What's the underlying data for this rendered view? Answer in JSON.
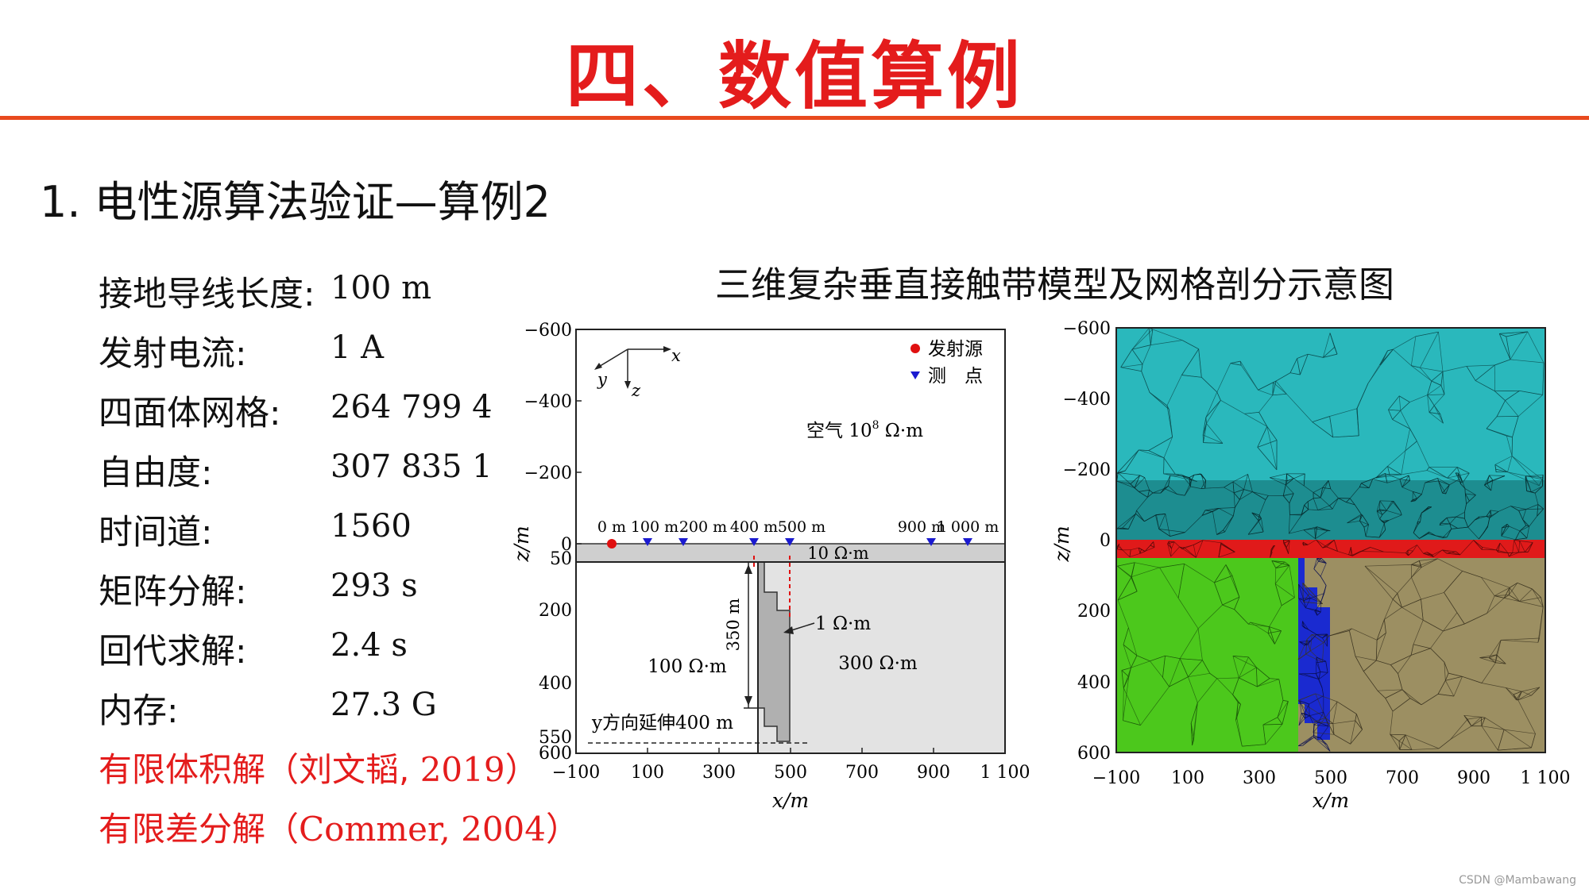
{
  "page": {
    "title": "四、数值算例",
    "subtitle": "1.  电性源算法验证—算例2",
    "figure_title": "三维复杂垂直接触带模型及网格剖分示意图",
    "watermark": "CSDN @Mambawang"
  },
  "params": [
    {
      "label": "接地导线长度:",
      "value": "100 m"
    },
    {
      "label": "发射电流:",
      "value": "1 A"
    },
    {
      "label": "四面体网格:",
      "value": "264 799 4"
    },
    {
      "label": "自由度:",
      "value": "307 835 1"
    },
    {
      "label": "时间道:",
      "value": "1560"
    },
    {
      "label": "矩阵分解:",
      "value": "293 s"
    },
    {
      "label": "回代求解:",
      "value": "2.4 s"
    },
    {
      "label": "内存:",
      "value": "27.3 G"
    }
  ],
  "refs": [
    {
      "prefix": "有限体积解（刘文韬, ",
      "year": "2019",
      "suffix": "）"
    },
    {
      "prefix": "有限差分解（",
      "year": "Commer, 2004",
      "suffix": "）"
    }
  ],
  "left_plot": {
    "y_ticks_upper": [
      "−600",
      "−400",
      "−200",
      "0"
    ],
    "y_ticks_lower": [
      "50",
      "200",
      "400",
      "550",
      "600"
    ],
    "x_ticks": [
      "−100",
      "100",
      "300",
      "500",
      "700",
      "900",
      "1 100"
    ],
    "xlabel": "x/m",
    "ylabel": "z/m",
    "axis_x": "x",
    "axis_y": "y",
    "axis_z": "z",
    "legend_source": "发射源",
    "legend_station": "测　点",
    "air_label": "空气  10",
    "air_exp": "8",
    "air_unit": " Ω·m",
    "station_labels": [
      "0 m",
      "100 m",
      "200 m",
      "400 m",
      "500 m",
      "900 m",
      "1 000 m"
    ],
    "layer_label": "10 Ω·m",
    "left_block_label": "100 Ω·m",
    "right_block_label": "300 Ω·m",
    "dyke_label": "1 Ω·m",
    "depth_label": "350 m",
    "extend_label": "y方向延伸400 m",
    "colors": {
      "source": "#e01010",
      "station": "#1a1ad0",
      "layer": "#cfcfcf",
      "right": "#e3e3e3",
      "dyke": "#b0b0b0"
    }
  },
  "right_plot": {
    "y_ticks": [
      "−600",
      "−400",
      "−200",
      "0",
      "200",
      "400",
      "600"
    ],
    "x_ticks": [
      "−100",
      "100",
      "300",
      "500",
      "700",
      "900",
      "1 100"
    ],
    "xlabel": "x/m",
    "ylabel": "z/m",
    "colors": {
      "air": "#2ab8bc",
      "layer": "#e01a1a",
      "left": "#4cc81c",
      "right": "#9c8f62",
      "dyke": "#1a2ad0"
    }
  }
}
